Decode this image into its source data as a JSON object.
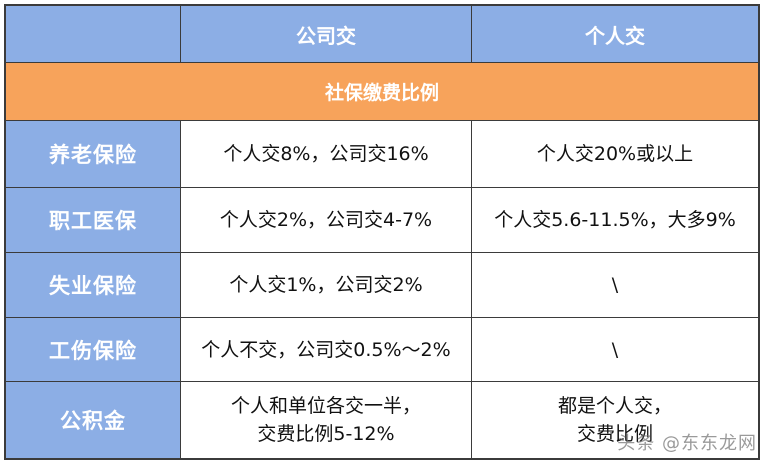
{
  "header": {
    "corner": "",
    "company": "公司交",
    "personal": "个人交"
  },
  "band_title": "社保缴费比例",
  "rows": [
    {
      "label": "养老保险",
      "company": "个人交8%，公司交16%",
      "personal": "个人交20%或以上"
    },
    {
      "label": "职工医保",
      "company": "个人交2%，公司交4-7%",
      "personal": "个人交5.6-11.5%，大多9%"
    },
    {
      "label": "失业保险",
      "company": "个人交1%，公司交2%",
      "personal": "\\"
    },
    {
      "label": "工伤保险",
      "company": "个人不交，公司交0.5%～2%",
      "personal": "\\"
    },
    {
      "label": "公积金",
      "company_lines": [
        "个人和单位各交一半，",
        "交费比例5-12%"
      ],
      "personal_lines": [
        "都是个人交，",
        "交费比例"
      ]
    }
  ],
  "watermark": "头条 @东东龙网"
}
